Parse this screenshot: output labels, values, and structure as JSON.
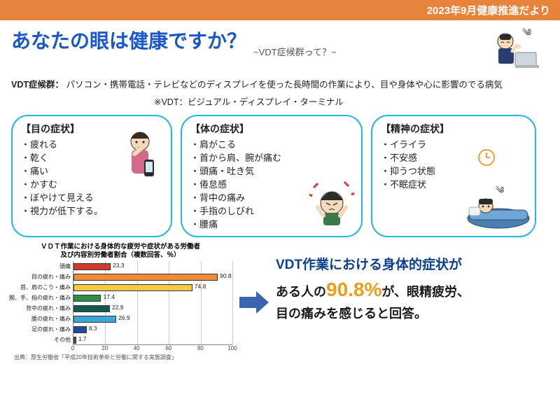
{
  "header": {
    "text": "2023年9月健康推進だより",
    "bg": "#e8833c"
  },
  "title": {
    "main": "あなたの眼は健康ですか？",
    "sub": "~VDT症候群って？~",
    "main_color": "#1a57c9"
  },
  "definition": {
    "label": "VDT症候群：",
    "text": "パソコン・携帯電話・テレビなどのディスプレイを使った長時間の作業により、目や身体や心に影響のでる病気",
    "note": "※VDT：ビジュアル・ディスプレイ・ターミナル"
  },
  "boxes": {
    "border_color": "#25b7e5",
    "eye": {
      "heading": "【目の症状】",
      "items": [
        "疲れる",
        "乾く",
        "痛い",
        "かすむ",
        "ぼやけて見える",
        "視力が低下する。"
      ]
    },
    "body": {
      "heading": "【体の症状】",
      "items": [
        "肩がこる",
        "首から肩、腕が痛む",
        "頭痛・吐き気",
        "倦怠感",
        "背中の痛み",
        "手指のしびれ",
        "腰痛"
      ]
    },
    "mind": {
      "heading": "【精神の症状】",
      "items": [
        "イライラ",
        "不安感",
        "抑うつ状態",
        "不眠症状"
      ]
    }
  },
  "chart": {
    "type": "bar-horizontal",
    "title_line1": "ＶＤＴ作業における身体的な疲労や症状がある労働者",
    "title_line2": "及び内容別労働者割合（複数回答、％）",
    "xmax": 100,
    "tick_step": 20,
    "ticks": [
      "0",
      "20",
      "40",
      "60",
      "80",
      "100"
    ],
    "grid_color": "#cccccc",
    "bars": [
      {
        "label": "頭痛",
        "value": 23.3,
        "color": "#d33a2f"
      },
      {
        "label": "目の疲れ・痛み",
        "value": 90.8,
        "color": "#f08b36"
      },
      {
        "label": "首、肩のこり・痛み",
        "value": 74.8,
        "color": "#f5c946"
      },
      {
        "label": "腕、手、指の疲れ・痛み",
        "value": 17.4,
        "color": "#2f8f46"
      },
      {
        "label": "背中の疲れ・痛み",
        "value": 22.9,
        "color": "#14584f"
      },
      {
        "label": "腰の疲れ・痛み",
        "value": 26.9,
        "color": "#3aa6d9"
      },
      {
        "label": "足の疲れ・痛み",
        "value": 8.3,
        "color": "#244b9b"
      },
      {
        "label": "その他",
        "value": 1.7,
        "color": "#5b3a7a"
      }
    ],
    "source": "出典：厚生労働省「平成20年技術革新と労働に関する実態調査」"
  },
  "callout": {
    "lead": "VDT作業における身体的症状が",
    "line2_pre": "ある人の",
    "em": "90.8%",
    "line2_post": "が、眼精疲労、",
    "line3": "目の痛みを感じると回答。",
    "em_color": "#e8a016",
    "lead_color": "#0b3f8f"
  }
}
